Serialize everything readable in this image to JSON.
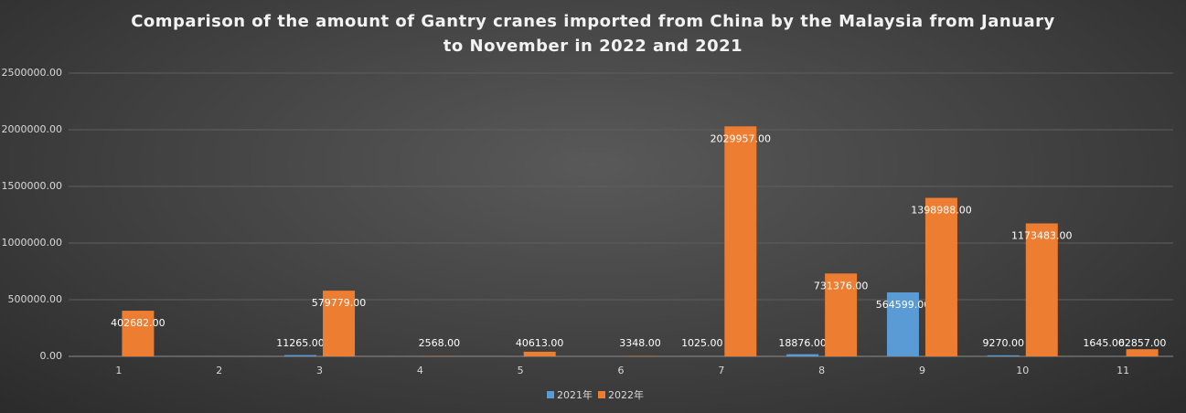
{
  "chart_data": {
    "type": "bar",
    "title": "Comparison of the amount of Gantry cranes imported from China by the Malaysia from January to November in 2022 and 2021",
    "categories": [
      "1",
      "2",
      "3",
      "4",
      "5",
      "6",
      "7",
      "8",
      "9",
      "10",
      "11"
    ],
    "series": [
      {
        "name": "2021年",
        "color": "#5b9bd5",
        "values": [
          null,
          null,
          11265,
          null,
          null,
          null,
          1025,
          18876,
          564599,
          9270,
          1645
        ],
        "value_labels": [
          null,
          null,
          "11265.00",
          null,
          null,
          null,
          "1025.00",
          "18876.00",
          "564599.00",
          "9270.00",
          "1645.00"
        ]
      },
      {
        "name": "2022年",
        "color": "#ed7d31",
        "values": [
          402682,
          null,
          579779,
          2568,
          40613,
          3348,
          2029957,
          731376,
          1398988,
          1173483,
          62857
        ],
        "value_labels": [
          "402682.00",
          null,
          "579779.00",
          "2568.00",
          "40613.00",
          "3348.00",
          "2029957.00",
          "731376.00",
          "1398988.00",
          "1173483.00",
          "62857.00"
        ]
      }
    ],
    "ylim": [
      0,
      2500000
    ],
    "yticks": [
      {
        "value": 0,
        "label": "0.00"
      },
      {
        "value": 500000,
        "label": "500000.00"
      },
      {
        "value": 1000000,
        "label": "1000000.00"
      },
      {
        "value": 1500000,
        "label": "1500000.00"
      },
      {
        "value": 2000000,
        "label": "2000000.00"
      },
      {
        "value": 2500000,
        "label": "2500000.00"
      }
    ],
    "grid": true,
    "legend": "bottom"
  }
}
